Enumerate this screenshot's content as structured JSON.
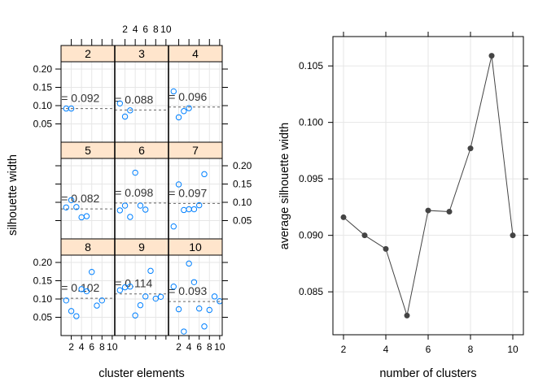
{
  "chart_data": [
    {
      "type": "scatter",
      "layout": "lattice panels 3x3 (one panel per number of clusters)",
      "xlabel": "cluster elements",
      "ylabel": "silhouette width",
      "x_ticks": [
        "2",
        "4",
        "6",
        "8",
        "10"
      ],
      "y_ticks": [
        "0.05",
        "0.10",
        "0.15",
        "0.20"
      ],
      "xlim": [
        0,
        10.5
      ],
      "ylim": [
        0,
        0.22
      ],
      "point_color": "#0080ff",
      "reference_line": "dashed horizontal line at the average silhouette width",
      "panels": [
        {
          "k": "2",
          "avg_label": "= 0.092",
          "avg": 0.092,
          "x": [
            1,
            2
          ],
          "y": [
            0.092,
            0.092
          ]
        },
        {
          "k": "3",
          "avg_label": "= 0.088",
          "avg": 0.088,
          "x": [
            1,
            2,
            3
          ],
          "y": [
            0.106,
            0.07,
            0.087
          ]
        },
        {
          "k": "4",
          "avg_label": "= 0.096",
          "avg": 0.096,
          "x": [
            1,
            2,
            3,
            4
          ],
          "y": [
            0.139,
            0.068,
            0.085,
            0.093
          ]
        },
        {
          "k": "5",
          "avg_label": "= 0.082",
          "avg": 0.082,
          "x": [
            1,
            2,
            3,
            4,
            5
          ],
          "y": [
            0.086,
            0.106,
            0.087,
            0.059,
            0.062
          ]
        },
        {
          "k": "6",
          "avg_label": "= 0.098",
          "avg": 0.098,
          "x": [
            1,
            2,
            3,
            4,
            5,
            6
          ],
          "y": [
            0.078,
            0.091,
            0.06,
            0.181,
            0.091,
            0.08
          ]
        },
        {
          "k": "7",
          "avg_label": "= 0.097",
          "avg": 0.097,
          "x": [
            1,
            2,
            3,
            4,
            5,
            6,
            7
          ],
          "y": [
            0.034,
            0.149,
            0.079,
            0.081,
            0.081,
            0.092,
            0.177
          ]
        },
        {
          "k": "8",
          "avg_label": "= 0.102",
          "avg": 0.102,
          "x": [
            1,
            2,
            3,
            4,
            5,
            6,
            7,
            8
          ],
          "y": [
            0.096,
            0.067,
            0.053,
            0.127,
            0.121,
            0.174,
            0.082,
            0.096
          ]
        },
        {
          "k": "9",
          "avg_label": "= 0.114",
          "avg": 0.114,
          "x": [
            1,
            2,
            3,
            4,
            5,
            6,
            7,
            8,
            9
          ],
          "y": [
            0.124,
            0.132,
            0.134,
            0.055,
            0.083,
            0.107,
            0.177,
            0.101,
            0.106
          ]
        },
        {
          "k": "10",
          "avg_label": "= 0.093",
          "avg": 0.093,
          "x": [
            1,
            2,
            3,
            4,
            5,
            6,
            7,
            8,
            9,
            10
          ],
          "y": [
            0.134,
            0.072,
            0.011,
            0.197,
            0.146,
            0.074,
            0.025,
            0.07,
            0.107,
            0.094
          ]
        }
      ]
    },
    {
      "type": "line",
      "xlabel": "number of clusters",
      "ylabel": "average silhouette width",
      "x": [
        2,
        3,
        4,
        5,
        6,
        7,
        8,
        9,
        10
      ],
      "y": [
        0.0916,
        0.09,
        0.0888,
        0.0829,
        0.0922,
        0.0921,
        0.0977,
        0.1059,
        0.09
      ],
      "x_ticks": [
        "2",
        "4",
        "6",
        "8",
        "10"
      ],
      "y_ticks": [
        "0.085",
        "0.090",
        "0.095",
        "0.100",
        "0.105"
      ],
      "xlim": [
        1.5,
        10.5
      ],
      "ylim": [
        0.0812,
        0.1076
      ],
      "grid": true,
      "line_color": "#444444"
    }
  ],
  "colors": {
    "strip_background": "#ffe5cc",
    "grid": "#e6e6e6",
    "reference_line": "#666666"
  }
}
